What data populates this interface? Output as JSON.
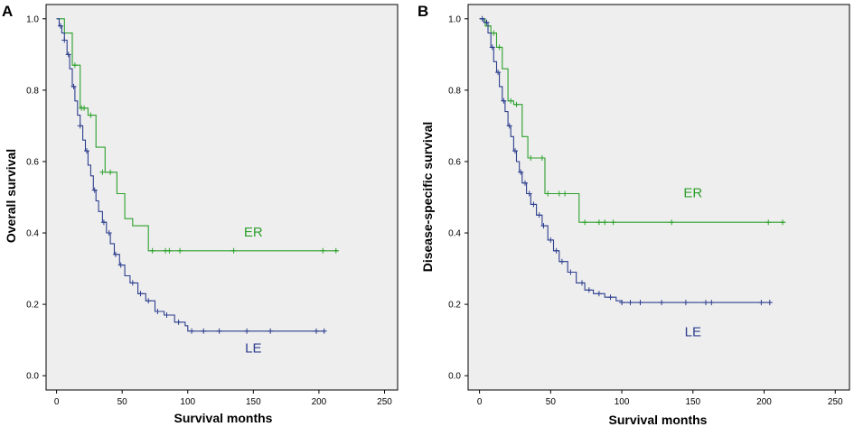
{
  "colors": {
    "plot_bg": "#eeeeee",
    "er": "#2ca02c",
    "le": "#2d3f8e",
    "axis": "#000000"
  },
  "chart_data": [
    {
      "type": "line",
      "subtype": "kaplan-meier",
      "panel": "A",
      "xlabel": "Survival months",
      "ylabel": "Overall survival",
      "xlim": [
        -8,
        260
      ],
      "ylim": [
        -0.04,
        1.04
      ],
      "xticks": [
        0,
        50,
        100,
        150,
        200,
        250
      ],
      "yticks": [
        0.0,
        0.2,
        0.4,
        0.6,
        0.8,
        1.0
      ],
      "tick_labels_x": [
        "0",
        "50",
        "100",
        "150",
        "200",
        "250"
      ],
      "tick_labels_y": [
        "0.0",
        "0.2",
        "0.4",
        "0.6",
        "0.8",
        "1.0"
      ],
      "series": [
        {
          "name": "ER",
          "key": "er",
          "label": "ER",
          "label_at": [
            150,
            0.39
          ],
          "steps": [
            [
              0,
              1.0
            ],
            [
              6,
              0.96
            ],
            [
              12,
              0.87
            ],
            [
              18,
              0.75
            ],
            [
              24,
              0.73
            ],
            [
              30,
              0.64
            ],
            [
              37,
              0.57
            ],
            [
              46,
              0.51
            ],
            [
              52,
              0.44
            ],
            [
              58,
              0.42
            ],
            [
              70,
              0.35
            ],
            [
              215,
              0.35
            ]
          ],
          "censored": [
            [
              14,
              0.87
            ],
            [
              19,
              0.75
            ],
            [
              21,
              0.75
            ],
            [
              26,
              0.73
            ],
            [
              35,
              0.57
            ],
            [
              41,
              0.57
            ],
            [
              73,
              0.35
            ],
            [
              83,
              0.35
            ],
            [
              86,
              0.35
            ],
            [
              94,
              0.35
            ],
            [
              135,
              0.35
            ],
            [
              203,
              0.35
            ],
            [
              213,
              0.35
            ]
          ]
        },
        {
          "name": "LE",
          "key": "le",
          "label": "LE",
          "label_at": [
            150,
            0.065
          ],
          "steps": [
            [
              0,
              1.0
            ],
            [
              2,
              0.98
            ],
            [
              4,
              0.96
            ],
            [
              6,
              0.94
            ],
            [
              8,
              0.9
            ],
            [
              10,
              0.86
            ],
            [
              12,
              0.81
            ],
            [
              14,
              0.77
            ],
            [
              16,
              0.73
            ],
            [
              18,
              0.7
            ],
            [
              20,
              0.66
            ],
            [
              22,
              0.63
            ],
            [
              24,
              0.59
            ],
            [
              26,
              0.56
            ],
            [
              28,
              0.52
            ],
            [
              30,
              0.49
            ],
            [
              32,
              0.46
            ],
            [
              35,
              0.43
            ],
            [
              38,
              0.4
            ],
            [
              41,
              0.37
            ],
            [
              44,
              0.34
            ],
            [
              48,
              0.31
            ],
            [
              52,
              0.28
            ],
            [
              56,
              0.26
            ],
            [
              62,
              0.23
            ],
            [
              68,
              0.21
            ],
            [
              75,
              0.18
            ],
            [
              82,
              0.17
            ],
            [
              90,
              0.15
            ],
            [
              98,
              0.14
            ],
            [
              100,
              0.125
            ],
            [
              205,
              0.125
            ]
          ],
          "censored": [
            [
              3,
              0.98
            ],
            [
              6,
              0.94
            ],
            [
              9,
              0.9
            ],
            [
              13,
              0.81
            ],
            [
              18,
              0.7
            ],
            [
              23,
              0.63
            ],
            [
              29,
              0.52
            ],
            [
              36,
              0.43
            ],
            [
              40,
              0.4
            ],
            [
              45,
              0.34
            ],
            [
              49,
              0.31
            ],
            [
              58,
              0.26
            ],
            [
              64,
              0.23
            ],
            [
              70,
              0.21
            ],
            [
              77,
              0.18
            ],
            [
              84,
              0.17
            ],
            [
              93,
              0.15
            ],
            [
              103,
              0.125
            ],
            [
              112,
              0.125
            ],
            [
              124,
              0.125
            ],
            [
              145,
              0.125
            ],
            [
              163,
              0.125
            ],
            [
              198,
              0.125
            ],
            [
              204,
              0.125
            ]
          ]
        }
      ]
    },
    {
      "type": "line",
      "subtype": "kaplan-meier",
      "panel": "B",
      "xlabel": "Survival months",
      "ylabel": "Disease-specific survival",
      "xlim": [
        -8,
        260
      ],
      "ylim": [
        -0.04,
        1.04
      ],
      "xticks": [
        0,
        50,
        100,
        150,
        200,
        250
      ],
      "yticks": [
        0.0,
        0.2,
        0.4,
        0.6,
        0.8,
        1.0
      ],
      "tick_labels_x": [
        "0",
        "50",
        "100",
        "150",
        "200",
        "250"
      ],
      "tick_labels_y": [
        "0.0",
        "0.2",
        "0.4",
        "0.6",
        "0.8",
        "1.0"
      ],
      "series": [
        {
          "name": "ER",
          "key": "er",
          "label": "ER",
          "label_at": [
            150,
            0.5
          ],
          "steps": [
            [
              0,
              1.0
            ],
            [
              4,
              0.98
            ],
            [
              8,
              0.96
            ],
            [
              12,
              0.92
            ],
            [
              16,
              0.86
            ],
            [
              20,
              0.77
            ],
            [
              24,
              0.76
            ],
            [
              30,
              0.67
            ],
            [
              34,
              0.61
            ],
            [
              42,
              0.61
            ],
            [
              46,
              0.51
            ],
            [
              62,
              0.51
            ],
            [
              70,
              0.43
            ],
            [
              215,
              0.43
            ]
          ],
          "censored": [
            [
              6,
              0.98
            ],
            [
              10,
              0.96
            ],
            [
              14,
              0.92
            ],
            [
              22,
              0.77
            ],
            [
              26,
              0.76
            ],
            [
              36,
              0.61
            ],
            [
              44,
              0.61
            ],
            [
              48,
              0.51
            ],
            [
              56,
              0.51
            ],
            [
              60,
              0.51
            ],
            [
              74,
              0.43
            ],
            [
              84,
              0.43
            ],
            [
              88,
              0.43
            ],
            [
              94,
              0.43
            ],
            [
              135,
              0.43
            ],
            [
              203,
              0.43
            ],
            [
              213,
              0.43
            ]
          ]
        },
        {
          "name": "LE",
          "key": "le",
          "label": "LE",
          "label_at": [
            150,
            0.11
          ],
          "steps": [
            [
              0,
              1.0
            ],
            [
              3,
              0.99
            ],
            [
              6,
              0.96
            ],
            [
              8,
              0.92
            ],
            [
              10,
              0.88
            ],
            [
              12,
              0.85
            ],
            [
              14,
              0.81
            ],
            [
              16,
              0.77
            ],
            [
              18,
              0.74
            ],
            [
              20,
              0.7
            ],
            [
              22,
              0.67
            ],
            [
              24,
              0.63
            ],
            [
              26,
              0.6
            ],
            [
              28,
              0.57
            ],
            [
              30,
              0.54
            ],
            [
              33,
              0.51
            ],
            [
              36,
              0.48
            ],
            [
              40,
              0.45
            ],
            [
              44,
              0.42
            ],
            [
              48,
              0.38
            ],
            [
              52,
              0.35
            ],
            [
              56,
              0.32
            ],
            [
              62,
              0.29
            ],
            [
              68,
              0.26
            ],
            [
              74,
              0.24
            ],
            [
              80,
              0.23
            ],
            [
              88,
              0.22
            ],
            [
              96,
              0.21
            ],
            [
              100,
              0.205
            ],
            [
              205,
              0.205
            ]
          ],
          "censored": [
            [
              2,
              1.0
            ],
            [
              5,
              0.99
            ],
            [
              9,
              0.92
            ],
            [
              13,
              0.85
            ],
            [
              17,
              0.77
            ],
            [
              21,
              0.7
            ],
            [
              25,
              0.63
            ],
            [
              29,
              0.57
            ],
            [
              32,
              0.54
            ],
            [
              35,
              0.51
            ],
            [
              38,
              0.48
            ],
            [
              42,
              0.45
            ],
            [
              45,
              0.42
            ],
            [
              50,
              0.38
            ],
            [
              54,
              0.35
            ],
            [
              58,
              0.32
            ],
            [
              64,
              0.29
            ],
            [
              72,
              0.26
            ],
            [
              77,
              0.24
            ],
            [
              84,
              0.23
            ],
            [
              92,
              0.22
            ],
            [
              100,
              0.205
            ],
            [
              106,
              0.205
            ],
            [
              113,
              0.205
            ],
            [
              128,
              0.205
            ],
            [
              145,
              0.205
            ],
            [
              159,
              0.205
            ],
            [
              163,
              0.205
            ],
            [
              198,
              0.205
            ],
            [
              204,
              0.205
            ]
          ]
        }
      ]
    }
  ]
}
